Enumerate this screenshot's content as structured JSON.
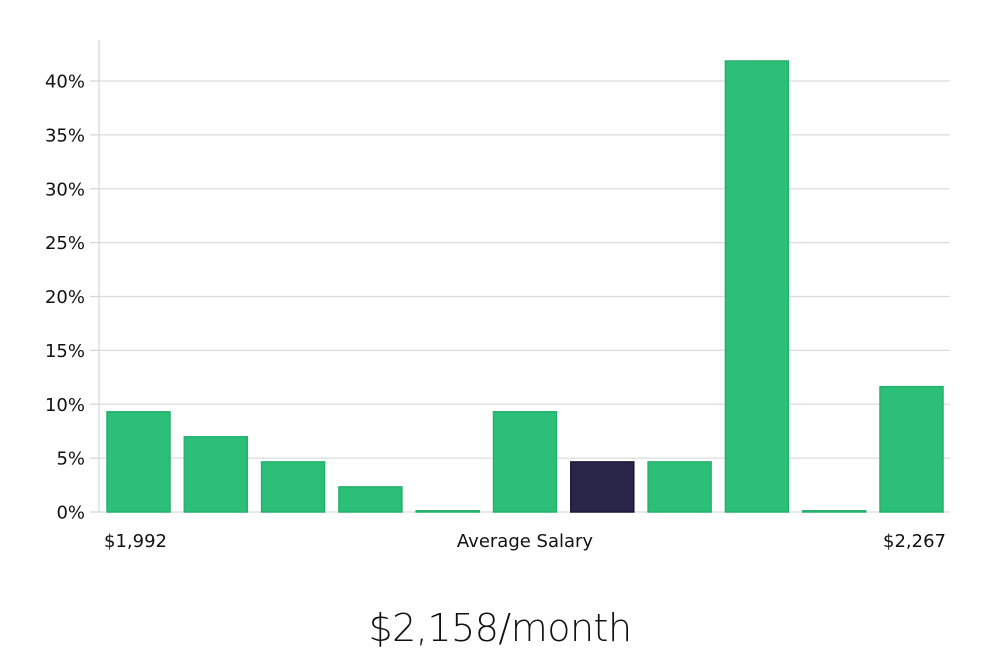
{
  "chart_data": {
    "type": "bar",
    "title": "",
    "xlabel": "Average Salary",
    "ylabel": "",
    "x_range_labels": {
      "min": "$1,992",
      "max": "$2,267"
    },
    "categories": [
      "bin1",
      "bin2",
      "bin3",
      "bin4",
      "bin5",
      "bin6",
      "bin7",
      "bin8",
      "bin9",
      "bin10",
      "bin11"
    ],
    "values": [
      9.3,
      6.98,
      4.65,
      2.33,
      0.0,
      9.3,
      4.65,
      4.65,
      41.86,
      0.0,
      11.63
    ],
    "highlight_index": 6,
    "ylim": [
      0,
      43.5
    ],
    "yticks": [
      0,
      5,
      10,
      15,
      20,
      25,
      30,
      35,
      40
    ],
    "ytick_labels": [
      "0%",
      "5%",
      "10%",
      "15%",
      "20%",
      "25%",
      "30%",
      "35%",
      "40%"
    ],
    "grid": true,
    "legend": null,
    "colors": {
      "bar": "#2bbf78",
      "bar_edge": "#25b06d",
      "highlight": "#2a2649",
      "highlight_edge": "#1c1838",
      "grid": "#dcdcdc"
    }
  },
  "summary": {
    "text": "$2,158/month"
  }
}
